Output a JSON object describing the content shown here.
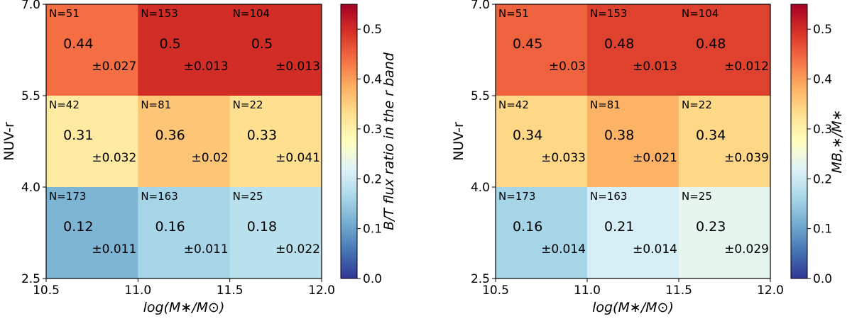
{
  "chart_data": [
    {
      "type": "heatmap",
      "xlabel": "log(M∗/M⊙)",
      "ylabel": "NUV-r",
      "x_edges": [
        10.5,
        11.0,
        11.5,
        12.0
      ],
      "y_edges": [
        2.5,
        4.0,
        5.5,
        7.0
      ],
      "x_ticks": [
        "10.5",
        "11.0",
        "11.5",
        "12.0"
      ],
      "y_ticks": [
        "2.5",
        "4.0",
        "5.5",
        "7.0"
      ],
      "rows": [
        {
          "y_range": [
            5.5,
            7.0
          ],
          "cells": [
            {
              "n": "N=51",
              "value": 0.44,
              "value_label": "0.44",
              "err_label": "±0.027"
            },
            {
              "n": "N=153",
              "value": 0.5,
              "value_label": "0.5",
              "err_label": "±0.013"
            },
            {
              "n": "N=104",
              "value": 0.5,
              "value_label": "0.5",
              "err_label": "±0.013"
            }
          ]
        },
        {
          "y_range": [
            4.0,
            5.5
          ],
          "cells": [
            {
              "n": "N=42",
              "value": 0.31,
              "value_label": "0.31",
              "err_label": "±0.032"
            },
            {
              "n": "N=81",
              "value": 0.36,
              "value_label": "0.36",
              "err_label": "±0.02"
            },
            {
              "n": "N=22",
              "value": 0.33,
              "value_label": "0.33",
              "err_label": "±0.041"
            }
          ]
        },
        {
          "y_range": [
            2.5,
            4.0
          ],
          "cells": [
            {
              "n": "N=173",
              "value": 0.12,
              "value_label": "0.12",
              "err_label": "±0.011"
            },
            {
              "n": "N=163",
              "value": 0.16,
              "value_label": "0.16",
              "err_label": "±0.011"
            },
            {
              "n": "N=25",
              "value": 0.18,
              "value_label": "0.18",
              "err_label": "±0.022"
            }
          ]
        }
      ],
      "colorbar": {
        "label": "B/T flux ratio in the r band",
        "range": [
          0.0,
          0.55
        ],
        "ticks": [
          "0.0",
          "0.1",
          "0.2",
          "0.3",
          "0.4",
          "0.5"
        ],
        "colormap": "RdYlBu_r"
      }
    },
    {
      "type": "heatmap",
      "xlabel": "log(M∗/M⊙)",
      "ylabel": "NUV-r",
      "x_edges": [
        10.5,
        11.0,
        11.5,
        12.0
      ],
      "y_edges": [
        2.5,
        4.0,
        5.5,
        7.0
      ],
      "x_ticks": [
        "10.5",
        "11.0",
        "11.5",
        "12.0"
      ],
      "y_ticks": [
        "2.5",
        "4.0",
        "5.5",
        "7.0"
      ],
      "rows": [
        {
          "y_range": [
            5.5,
            7.0
          ],
          "cells": [
            {
              "n": "N=51",
              "value": 0.45,
              "value_label": "0.45",
              "err_label": "±0.03"
            },
            {
              "n": "N=153",
              "value": 0.48,
              "value_label": "0.48",
              "err_label": "±0.013"
            },
            {
              "n": "N=104",
              "value": 0.48,
              "value_label": "0.48",
              "err_label": "±0.012"
            }
          ]
        },
        {
          "y_range": [
            4.0,
            5.5
          ],
          "cells": [
            {
              "n": "N=42",
              "value": 0.34,
              "value_label": "0.34",
              "err_label": "±0.033"
            },
            {
              "n": "N=81",
              "value": 0.38,
              "value_label": "0.38",
              "err_label": "±0.021"
            },
            {
              "n": "N=22",
              "value": 0.34,
              "value_label": "0.34",
              "err_label": "±0.039"
            }
          ]
        },
        {
          "y_range": [
            2.5,
            4.0
          ],
          "cells": [
            {
              "n": "N=173",
              "value": 0.16,
              "value_label": "0.16",
              "err_label": "±0.014"
            },
            {
              "n": "N=163",
              "value": 0.21,
              "value_label": "0.21",
              "err_label": "±0.014"
            },
            {
              "n": "N=25",
              "value": 0.23,
              "value_label": "0.23",
              "err_label": "±0.029"
            }
          ]
        }
      ],
      "colorbar": {
        "label": "MB,∗/M∗",
        "range": [
          0.0,
          0.55
        ],
        "ticks": [
          "0.0",
          "0.1",
          "0.2",
          "0.3",
          "0.4",
          "0.5"
        ],
        "colormap": "RdYlBu_r"
      }
    }
  ]
}
